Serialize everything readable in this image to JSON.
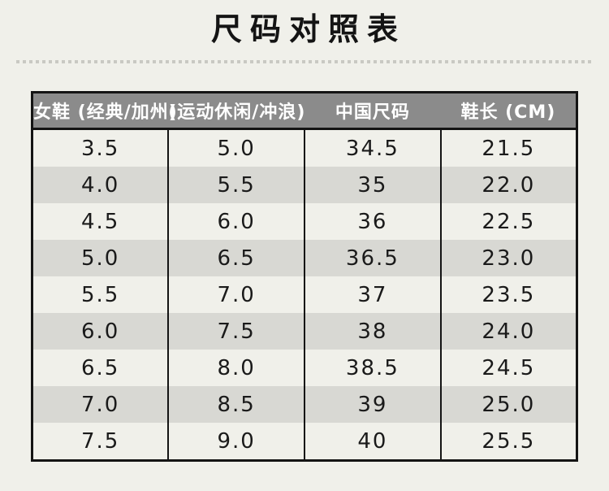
{
  "page": {
    "title": "尺码对照表"
  },
  "colors": {
    "background": "#f0f0ea",
    "header_background": "#8b8b8b",
    "header_text": "#ffffff",
    "row_stripe": "#d8d8d3",
    "table_border": "#141414",
    "divider_dots": "#c9c9c3",
    "body_text": "#1a1a1a"
  },
  "chart_data": {
    "type": "table",
    "title": "尺码对照表",
    "columns": [
      "女鞋 (经典/加州)",
      "(运动休闲/冲浪)",
      "中国尺码",
      "鞋长 (CM)"
    ],
    "rows": [
      [
        "3.5",
        "5.0",
        "34.5",
        "21.5"
      ],
      [
        "4.0",
        "5.5",
        "35",
        "22.0"
      ],
      [
        "4.5",
        "6.0",
        "36",
        "22.5"
      ],
      [
        "5.0",
        "6.5",
        "36.5",
        "23.0"
      ],
      [
        "5.5",
        "7.0",
        "37",
        "23.5"
      ],
      [
        "6.0",
        "7.5",
        "38",
        "24.0"
      ],
      [
        "6.5",
        "8.0",
        "38.5",
        "24.5"
      ],
      [
        "7.0",
        "8.5",
        "39",
        "25.0"
      ],
      [
        "7.5",
        "9.0",
        "40",
        "25.5"
      ]
    ],
    "layout": {
      "striped_rows": "even rows shaded gray",
      "column_separators": "vertical black lines in body only",
      "header_separators": "none"
    }
  }
}
